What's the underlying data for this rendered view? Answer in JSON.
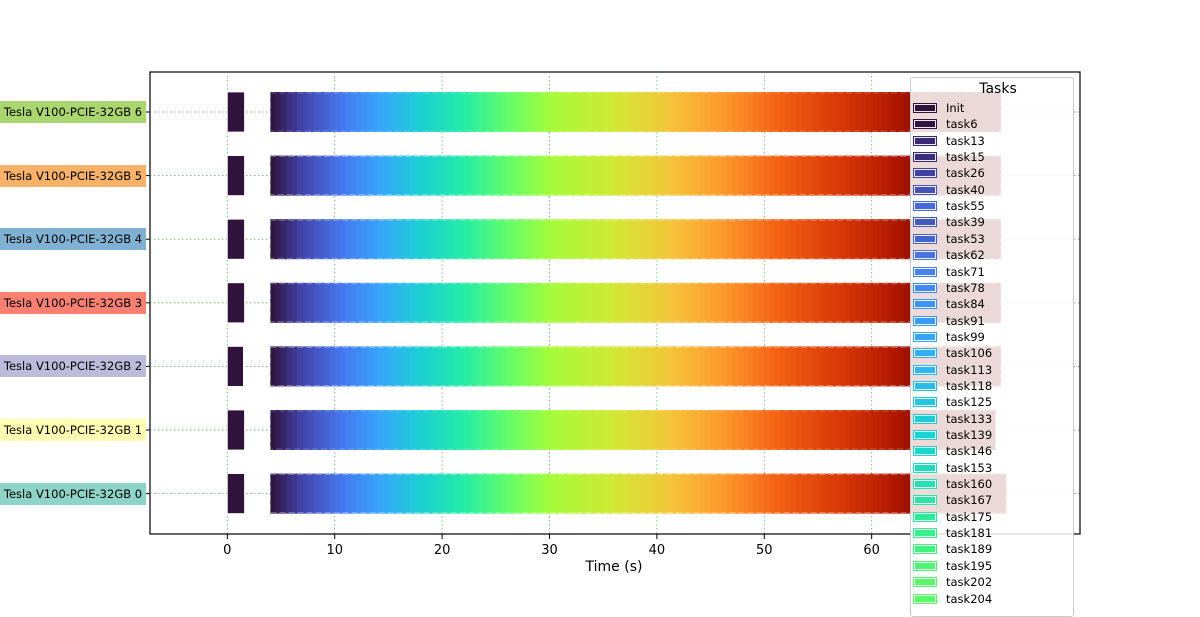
{
  "chart_data": {
    "type": "bar",
    "subtype": "gantt",
    "title": "",
    "xlabel": "Time (s)",
    "ylabel": "",
    "xlim": [
      -7.2,
      79.4
    ],
    "xticks": [
      0,
      10,
      20,
      30,
      40,
      50,
      60
    ],
    "grid": "on (dotted green, vertical at ticks; horizontal through each row)",
    "legend": {
      "title": "Tasks",
      "placement": "right, overlapping plot"
    },
    "rows": [
      {
        "label": "Tesla V100-PCIE-32GB 6",
        "color": "#a9d66e"
      },
      {
        "label": "Tesla V100-PCIE-32GB 5",
        "color": "#fbb167"
      },
      {
        "label": "Tesla V100-PCIE-32GB 4",
        "color": "#80b1d3"
      },
      {
        "label": "Tesla V100-PCIE-32GB 3",
        "color": "#fb8072"
      },
      {
        "label": "Tesla V100-PCIE-32GB 2",
        "color": "#bebada"
      },
      {
        "label": "Tesla V100-PCIE-32GB 1",
        "color": "#ffffb3"
      },
      {
        "label": "Tesla V100-PCIE-32GB 0",
        "color": "#8dd3c7"
      }
    ],
    "init": [
      {
        "start": 0.0,
        "end": 1.6
      },
      {
        "start": 0.0,
        "end": 1.6
      },
      {
        "start": 0.0,
        "end": 1.6
      },
      {
        "start": 0.0,
        "end": 1.6
      },
      {
        "start": 0.0,
        "end": 1.5
      },
      {
        "start": 0.0,
        "end": 1.6
      },
      {
        "start": 0.0,
        "end": 1.6
      }
    ],
    "row_spans": [
      {
        "start": 4.0,
        "end": 72.0
      },
      {
        "start": 4.0,
        "end": 72.0
      },
      {
        "start": 4.0,
        "end": 72.0
      },
      {
        "start": 4.0,
        "end": 72.0
      },
      {
        "start": 4.0,
        "end": 72.0
      },
      {
        "start": 4.0,
        "end": 71.5
      },
      {
        "start": 4.0,
        "end": 72.5
      }
    ],
    "color_stops": [
      {
        "t": 4.0,
        "color": "#30123b"
      },
      {
        "t": 7.0,
        "color": "#4145ab"
      },
      {
        "t": 10.5,
        "color": "#4675ed"
      },
      {
        "t": 14.0,
        "color": "#39a2fc"
      },
      {
        "t": 18.0,
        "color": "#1bcfd4"
      },
      {
        "t": 22.0,
        "color": "#24eca6"
      },
      {
        "t": 26.0,
        "color": "#61fc6c"
      },
      {
        "t": 30.0,
        "color": "#a4fc3b"
      },
      {
        "t": 36.0,
        "color": "#d1e834"
      },
      {
        "t": 41.0,
        "color": "#f3c63a"
      },
      {
        "t": 46.0,
        "color": "#fe9b2d"
      },
      {
        "t": 51.0,
        "color": "#f36315"
      },
      {
        "t": 57.0,
        "color": "#d93806"
      },
      {
        "t": 62.0,
        "color": "#b11901"
      },
      {
        "t": 66.0,
        "color": "#7a0403"
      }
    ],
    "legend_items": [
      {
        "label": "Init",
        "color": "#30123b"
      },
      {
        "label": "task6",
        "color": "#321543"
      },
      {
        "label": "task13",
        "color": "#3a2a71"
      },
      {
        "label": "task15",
        "color": "#3b2e78"
      },
      {
        "label": "task26",
        "color": "#4040a0"
      },
      {
        "label": "task40",
        "color": "#4553b8"
      },
      {
        "label": "task55",
        "color": "#4668dd"
      },
      {
        "label": "task39",
        "color": "#4459bd"
      },
      {
        "label": "task53",
        "color": "#4563cf"
      },
      {
        "label": "task62",
        "color": "#4a72e0"
      },
      {
        "label": "task71",
        "color": "#4680f0"
      },
      {
        "label": "task78",
        "color": "#418af6"
      },
      {
        "label": "task84",
        "color": "#3c92f8"
      },
      {
        "label": "task91",
        "color": "#3a9bfa"
      },
      {
        "label": "task99",
        "color": "#38a4fb"
      },
      {
        "label": "task106",
        "color": "#33adf6"
      },
      {
        "label": "task113",
        "color": "#2cb7ee"
      },
      {
        "label": "task118",
        "color": "#27bfe7"
      },
      {
        "label": "task125",
        "color": "#22c6df"
      },
      {
        "label": "task133",
        "color": "#1ccdd6"
      },
      {
        "label": "task139",
        "color": "#1ad2cf"
      },
      {
        "label": "task146",
        "color": "#1bd7c6"
      },
      {
        "label": "task153",
        "color": "#1edcbd"
      },
      {
        "label": "task160",
        "color": "#22e1b2"
      },
      {
        "label": "task167",
        "color": "#28e6a6"
      },
      {
        "label": "task175",
        "color": "#2feb99"
      },
      {
        "label": "task181",
        "color": "#38ef8d"
      },
      {
        "label": "task189",
        "color": "#42f280"
      },
      {
        "label": "task195",
        "color": "#4df574"
      },
      {
        "label": "task202",
        "color": "#57f86a"
      },
      {
        "label": "task204",
        "color": "#5cfa66"
      }
    ]
  }
}
